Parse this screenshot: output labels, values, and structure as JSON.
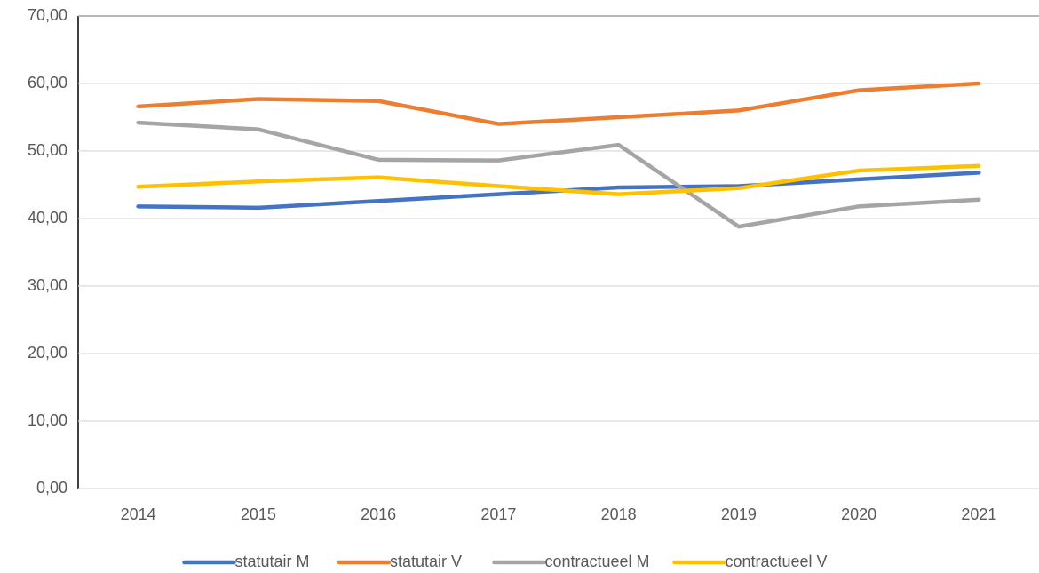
{
  "chart_data": {
    "type": "line",
    "categories": [
      "2014",
      "2015",
      "2016",
      "2017",
      "2018",
      "2019",
      "2020",
      "2021"
    ],
    "series": [
      {
        "name": "statutair M",
        "color": "#4472c4",
        "values": [
          41.8,
          41.6,
          42.6,
          43.6,
          44.6,
          44.8,
          45.8,
          46.8
        ]
      },
      {
        "name": "statutair V",
        "color": "#ed7d31",
        "values": [
          56.6,
          57.7,
          57.4,
          54.0,
          55.0,
          56.0,
          59.0,
          60.0
        ]
      },
      {
        "name": "contractueel M",
        "color": "#a5a5a5",
        "values": [
          54.2,
          53.2,
          48.7,
          48.6,
          50.9,
          38.8,
          41.8,
          42.8
        ]
      },
      {
        "name": "contractueel V",
        "color": "#ffc000",
        "values": [
          44.7,
          45.5,
          46.1,
          44.8,
          43.6,
          44.5,
          47.1,
          47.8
        ]
      }
    ],
    "ylim": [
      0,
      70
    ],
    "yticks": [
      {
        "value": 0,
        "label": "0,00"
      },
      {
        "value": 10,
        "label": "10,00"
      },
      {
        "value": 20,
        "label": "20,00"
      },
      {
        "value": 30,
        "label": "30,00"
      },
      {
        "value": 40,
        "label": "40,00"
      },
      {
        "value": 50,
        "label": "50,00"
      },
      {
        "value": 60,
        "label": "60,00"
      },
      {
        "value": 70,
        "label": "70,00"
      }
    ],
    "grid": true,
    "legend": "bottom"
  }
}
